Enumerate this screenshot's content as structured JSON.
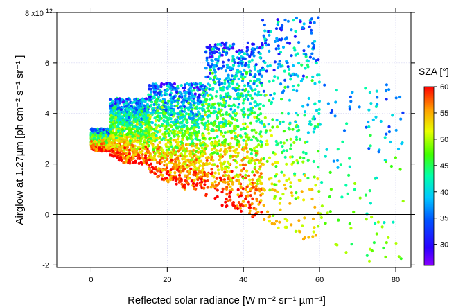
{
  "chart_data": {
    "type": "scatter",
    "title": "",
    "xlabel": "Reflected solar radiance [W m⁻² sr⁻¹ µm⁻¹]",
    "ylabel": "Airglow at 1.27µm  [ph cm⁻² s⁻¹ sr⁻¹ ]",
    "xlim": [
      -9,
      84
    ],
    "ylim": [
      -2.1,
      8.0
    ],
    "x_ticks": [
      0,
      20,
      40,
      60,
      80
    ],
    "y_ticks": [
      -2,
      0,
      2,
      4,
      6
    ],
    "x_tick_labels": [
      "0",
      "20",
      "40",
      "60",
      "80"
    ],
    "y_tick_labels": [
      "-2",
      "0",
      "2",
      "4",
      "6"
    ],
    "y_top_label": "8 x10",
    "y_exponent": "12",
    "y_scale_factor": 1000000000000.0,
    "grid": true,
    "zero_line": true,
    "colorbar": {
      "title": "SZA [°]",
      "min": 26,
      "max": 60,
      "ticks": [
        30,
        35,
        40,
        45,
        50,
        55,
        60
      ],
      "tick_labels": [
        "30",
        "35",
        "40",
        "45",
        "50",
        "55",
        "60"
      ],
      "colormap": "rainbow (violet-blue-cyan-green-yellow-red)"
    },
    "point_density": [
      {
        "x_range": [
          0,
          5
        ],
        "y_range": [
          2.5,
          3.4
        ],
        "sza_range": [
          30,
          60
        ],
        "n": 700
      },
      {
        "x_range": [
          5,
          15
        ],
        "y_range": [
          2.0,
          4.6
        ],
        "sza_range": [
          28,
          60
        ],
        "n": 900
      },
      {
        "x_range": [
          15,
          30
        ],
        "y_range": [
          1.0,
          5.2
        ],
        "sza_range": [
          28,
          60
        ],
        "n": 1100
      },
      {
        "x_range": [
          30,
          45
        ],
        "y_range": [
          -0.5,
          6.8
        ],
        "sza_range": [
          28,
          60
        ],
        "n": 900
      },
      {
        "x_range": [
          45,
          60
        ],
        "y_range": [
          -1.2,
          7.8
        ],
        "sza_range": [
          28,
          55
        ],
        "n": 350
      },
      {
        "x_range": [
          60,
          82
        ],
        "y_range": [
          -1.9,
          5.2
        ],
        "sza_range": [
          32,
          50
        ],
        "n": 120
      }
    ]
  }
}
